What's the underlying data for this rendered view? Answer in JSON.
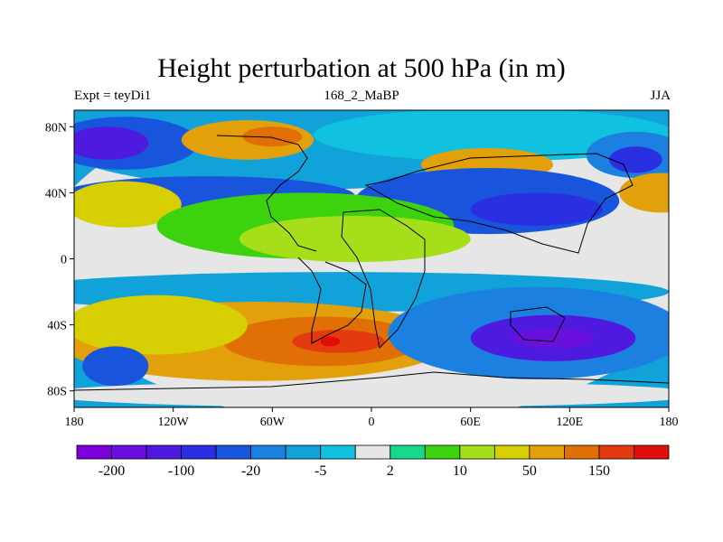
{
  "title": "Height perturbation at 500 hPa (in m)",
  "left_label": "Expt = teyDi1",
  "center_label": "168_2_MaBP",
  "right_label": "JJA",
  "map": {
    "projection": "cylindrical-equidistant",
    "lon_range": [
      -180,
      180
    ],
    "lat_range": [
      -90,
      90
    ],
    "lat_ticks": [
      {
        "value": 80,
        "label": "80N"
      },
      {
        "value": 40,
        "label": "40N"
      },
      {
        "value": 0,
        "label": "0"
      },
      {
        "value": -40,
        "label": "40S"
      },
      {
        "value": -80,
        "label": "80S"
      }
    ],
    "lon_ticks": [
      {
        "value": -180,
        "label": "180"
      },
      {
        "value": -120,
        "label": "120W"
      },
      {
        "value": -60,
        "label": "60W"
      },
      {
        "value": 0,
        "label": "0"
      },
      {
        "value": 60,
        "label": "60E"
      },
      {
        "value": 120,
        "label": "120E"
      },
      {
        "value": 180,
        "label": "180"
      }
    ]
  },
  "colorbar": {
    "colors": [
      "#7d00d8",
      "#6a10dc",
      "#4f1adf",
      "#2a2fe2",
      "#1955dc",
      "#1b80e0",
      "#12a2da",
      "#11c2e0",
      "#e6e6e6",
      "#16d98c",
      "#3cd20e",
      "#a6de1a",
      "#d7ce04",
      "#e2a00b",
      "#e07006",
      "#e43a10",
      "#e10f0c"
    ],
    "labels": [
      {
        "text": "-200",
        "after_box": 1
      },
      {
        "text": "-100",
        "after_box": 3
      },
      {
        "text": "-20",
        "after_box": 5
      },
      {
        "text": "-5",
        "after_box": 7
      },
      {
        "text": "2",
        "after_box": 9
      },
      {
        "text": "10",
        "after_box": 11
      },
      {
        "text": "50",
        "after_box": 13
      },
      {
        "text": "150",
        "after_box": 15
      }
    ]
  },
  "field_blobs": [
    {
      "color": "#e6e6e6",
      "lon": 0,
      "lat": 0,
      "rx": 200,
      "ry": 100
    },
    {
      "color": "#12a2da",
      "lon": -40,
      "lat": 70,
      "rx": 150,
      "ry": 28
    },
    {
      "color": "#1955dc",
      "lon": -150,
      "lat": 70,
      "rx": 45,
      "ry": 16
    },
    {
      "color": "#4f1adf",
      "lon": -160,
      "lat": 70,
      "rx": 25,
      "ry": 10
    },
    {
      "color": "#e2a00b",
      "lon": -75,
      "lat": 72,
      "rx": 40,
      "ry": 12
    },
    {
      "color": "#e07006",
      "lon": -60,
      "lat": 74,
      "rx": 18,
      "ry": 6
    },
    {
      "color": "#11c2e0",
      "lon": 75,
      "lat": 75,
      "rx": 110,
      "ry": 16
    },
    {
      "color": "#e2a00b",
      "lon": 70,
      "lat": 57,
      "rx": 40,
      "ry": 10
    },
    {
      "color": "#1b80e0",
      "lon": 160,
      "lat": 63,
      "rx": 30,
      "ry": 14
    },
    {
      "color": "#2a2fe2",
      "lon": 160,
      "lat": 60,
      "rx": 16,
      "ry": 8
    },
    {
      "color": "#1955dc",
      "lon": -100,
      "lat": 38,
      "rx": 90,
      "ry": 12
    },
    {
      "color": "#d7ce04",
      "lon": -150,
      "lat": 33,
      "rx": 35,
      "ry": 14
    },
    {
      "color": "#e2a00b",
      "lon": 175,
      "lat": 40,
      "rx": 25,
      "ry": 12
    },
    {
      "color": "#1955dc",
      "lon": 70,
      "lat": 35,
      "rx": 80,
      "ry": 20
    },
    {
      "color": "#2a2fe2",
      "lon": 100,
      "lat": 30,
      "rx": 40,
      "ry": 10
    },
    {
      "color": "#3cd20e",
      "lon": -40,
      "lat": 20,
      "rx": 90,
      "ry": 20
    },
    {
      "color": "#a6de1a",
      "lon": -10,
      "lat": 12,
      "rx": 70,
      "ry": 14
    },
    {
      "color": "#12a2da",
      "lon": -20,
      "lat": -20,
      "rx": 200,
      "ry": 12
    },
    {
      "color": "#e2a00b",
      "lon": -70,
      "lat": -50,
      "rx": 120,
      "ry": 24
    },
    {
      "color": "#e07006",
      "lon": -30,
      "lat": -50,
      "rx": 60,
      "ry": 15
    },
    {
      "color": "#e43a10",
      "lon": -20,
      "lat": -50,
      "rx": 28,
      "ry": 7
    },
    {
      "color": "#e10f0c",
      "lon": -25,
      "lat": -50,
      "rx": 6,
      "ry": 3
    },
    {
      "color": "#d7ce04",
      "lon": -130,
      "lat": -40,
      "rx": 55,
      "ry": 18
    },
    {
      "color": "#1b80e0",
      "lon": 100,
      "lat": -45,
      "rx": 90,
      "ry": 28
    },
    {
      "color": "#4f1adf",
      "lon": 110,
      "lat": -48,
      "rx": 50,
      "ry": 14
    },
    {
      "color": "#6a10dc",
      "lon": 110,
      "lat": -48,
      "rx": 25,
      "ry": 6
    },
    {
      "color": "#1955dc",
      "lon": -155,
      "lat": -65,
      "rx": 20,
      "ry": 12
    },
    {
      "color": "#e6e6e6",
      "lon": 0,
      "lat": -82,
      "rx": 200,
      "ry": 8
    }
  ]
}
